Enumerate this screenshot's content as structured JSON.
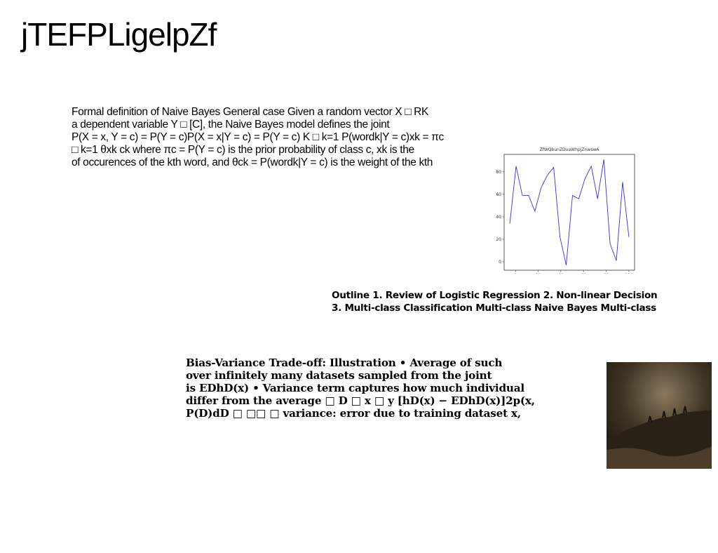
{
  "title": "jTEFPLigelpZf",
  "paragraph1": [
    "Formal definition of Naive Bayes General case Given a random vector X □ RK",
    "a dependent variable Y □ [C], the Naive Bayes model defines the joint",
    "P(X = x, Y = c) = P(Y = c)P(X = x|Y = c) = P(Y = c) K □ k=1 P(wordk|Y = c)xk = πc",
    "□ k=1 θxk ck where πc = P(Y = c) is the prior probability of class c, xk is the",
    "of occurences of the kth word, and θck = P(wordk|Y = c) is the weight of the kth"
  ],
  "outline": [
    "Outline 1. Review of Logistic Regression 2. Non-linear Decision",
    "3. Multi-class Classification Multi-class Naive Bayes Multi-class"
  ],
  "paragraph2": [
    "Bias-Variance Trade-off: Illustration • Average of such",
    "over infinitely many datasets sampled from the joint",
    "is EDhD(x) • Variance term captures how much individual",
    "differ from the average □ D □ x □ y [hD(x) − EDhD(x)]2p(x,",
    "P(D)dD □ □□ □ variance: error due to training dataset x,"
  ],
  "chart_data": {
    "type": "line",
    "title": "ZfWQbunZDuaWhpjZnwswA",
    "x": [
      -5,
      0.53,
      6.05,
      11.58,
      17.11,
      22.63,
      28.16,
      33.68,
      39.21,
      44.74,
      50.26,
      55.79,
      61.32,
      66.84,
      72.37,
      77.89,
      83.42,
      88.95,
      94.47,
      100
    ],
    "series": [
      {
        "color": "#3333cc",
        "values": [
          34,
          85,
          59,
          59,
          45,
          66,
          77,
          84,
          22,
          -3,
          59,
          56,
          74,
          85,
          56,
          91,
          16,
          1,
          71,
          22
        ]
      }
    ],
    "xlim": [
      -10,
      105
    ],
    "ylim": [
      -7.5,
      95.5
    ],
    "xticks": [
      0,
      20,
      40,
      60,
      80,
      100
    ],
    "yticks": [
      0,
      20,
      40,
      60,
      80
    ]
  }
}
